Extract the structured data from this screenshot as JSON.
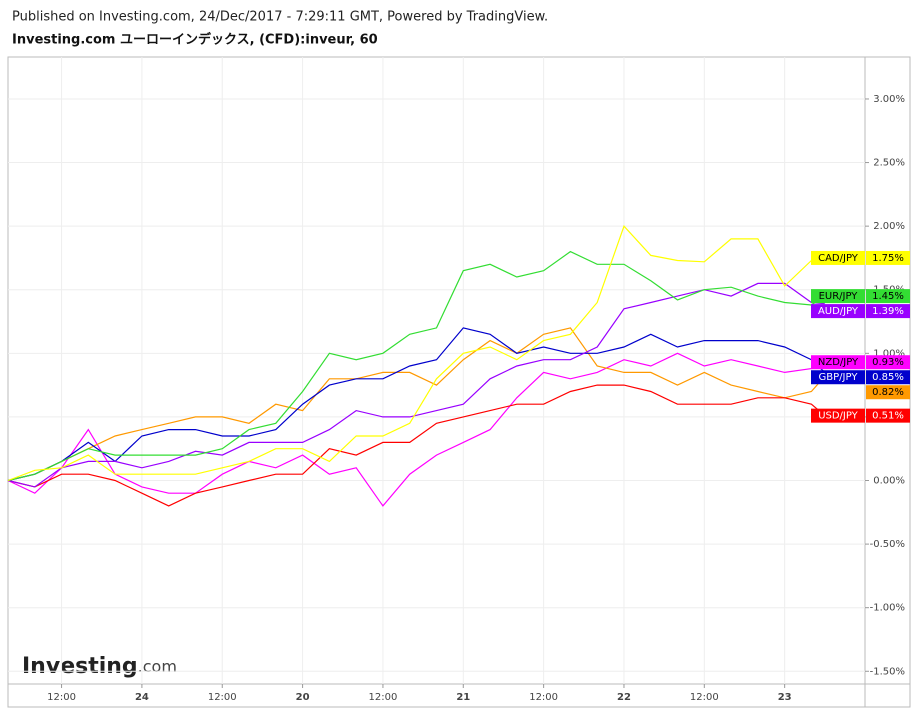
{
  "published": "Published on Investing.com, 24/Dec/2017 - 7:29:11 GMT, Powered by TradingView.",
  "chart_data": {
    "type": "line",
    "title": "Investing.com ユーローインデックス, (CFD):inveur, 60",
    "logo_main": "Investing",
    "logo_suffix": ".com",
    "x": [
      4,
      8,
      12,
      16,
      20,
      24,
      28,
      32,
      36,
      40,
      44,
      48,
      52,
      56,
      60,
      64,
      68,
      72,
      76,
      80,
      84,
      88,
      92,
      96,
      100,
      104,
      108,
      112,
      116,
      120,
      124,
      126
    ],
    "xlim": [
      4,
      132
    ],
    "xticks": [
      {
        "value": 12,
        "label": "12:00"
      },
      24,
      {
        "value": 36,
        "label": "12:00"
      },
      {
        "value": 48,
        "label": "20"
      },
      {
        "value": 60,
        "label": "12:00"
      },
      {
        "value": 72,
        "label": "21"
      },
      {
        "value": 84,
        "label": "12:00"
      },
      {
        "value": 96,
        "label": "22"
      },
      {
        "value": 108,
        "label": "12:00"
      },
      {
        "value": 120,
        "label": "23"
      }
    ],
    "ylim": [
      -1.6,
      3.33
    ],
    "yticks": [
      {
        "value": 3,
        "label": "3.00%"
      },
      {
        "value": 2.5,
        "label": "2.50%"
      },
      {
        "value": 2,
        "label": "2.00%"
      },
      {
        "value": 1.5,
        "label": "1.50%"
      },
      {
        "value": 1,
        "label": "1.00%"
      },
      {
        "value": 0.5,
        "label": "0.50%"
      },
      {
        "value": 0,
        "label": "0.00%"
      },
      {
        "value": -0.5,
        "label": "-0.50%"
      },
      {
        "value": -1,
        "label": "-1.00%"
      },
      {
        "value": -1.5,
        "label": "-1.50%"
      }
    ],
    "grid": true,
    "series": [
      {
        "name": "NZD/JPY",
        "color": "#ff00ff",
        "end_label": "0.93%",
        "values": [
          0,
          -0.1,
          0.1,
          0.4,
          0.05,
          -0.05,
          -0.1,
          -0.1,
          0.05,
          0.15,
          0.1,
          0.2,
          0.05,
          0.1,
          -0.2,
          0.05,
          0.2,
          0.3,
          0.4,
          0.65,
          0.85,
          0.8,
          0.85,
          0.95,
          0.9,
          1.0,
          0.9,
          0.95,
          0.9,
          0.85,
          0.88,
          0.93
        ]
      },
      {
        "color": "#ff9900",
        "end_label": "0.82%",
        "values": [
          0,
          0.05,
          0.15,
          0.25,
          0.35,
          0.4,
          0.45,
          0.5,
          0.5,
          0.45,
          0.6,
          0.55,
          0.8,
          0.8,
          0.85,
          0.85,
          0.75,
          0.95,
          1.1,
          1.0,
          1.15,
          1.2,
          0.9,
          0.85,
          0.85,
          0.75,
          0.85,
          0.75,
          0.7,
          0.65,
          0.7,
          0.82
        ]
      },
      {
        "name": "USD/JPY",
        "color": "#ff0000",
        "end_label": "0.51%",
        "values": [
          0,
          -0.05,
          0.05,
          0.05,
          0,
          -0.1,
          -0.2,
          -0.1,
          -0.05,
          0,
          0.05,
          0.05,
          0.25,
          0.2,
          0.3,
          0.3,
          0.45,
          0.5,
          0.55,
          0.6,
          0.6,
          0.7,
          0.75,
          0.75,
          0.7,
          0.6,
          0.6,
          0.6,
          0.65,
          0.65,
          0.6,
          0.51
        ]
      },
      {
        "name": "GBP/JPY",
        "color": "#0000cc",
        "end_label": "0.85%",
        "values": [
          0,
          0.05,
          0.15,
          0.3,
          0.15,
          0.35,
          0.4,
          0.4,
          0.35,
          0.35,
          0.4,
          0.6,
          0.75,
          0.8,
          0.8,
          0.9,
          0.95,
          1.2,
          1.15,
          1.0,
          1.05,
          1.0,
          1.0,
          1.05,
          1.15,
          1.05,
          1.1,
          1.1,
          1.1,
          1.05,
          0.95,
          0.85
        ]
      },
      {
        "name": "AUD/JPY",
        "color": "#9900ff",
        "end_label": "1.39%",
        "values": [
          0,
          -0.05,
          0.1,
          0.15,
          0.15,
          0.1,
          0.15,
          0.23,
          0.2,
          0.3,
          0.3,
          0.3,
          0.4,
          0.55,
          0.5,
          0.5,
          0.55,
          0.6,
          0.8,
          0.9,
          0.95,
          0.95,
          1.05,
          1.35,
          1.4,
          1.45,
          1.5,
          1.45,
          1.55,
          1.55,
          1.4,
          1.39
        ]
      },
      {
        "name": "EUR/JPY",
        "color": "#33dd33",
        "end_label": "1.45%",
        "values": [
          0,
          0.05,
          0.15,
          0.25,
          0.2,
          0.2,
          0.2,
          0.2,
          0.25,
          0.4,
          0.45,
          0.7,
          1.0,
          0.95,
          1.0,
          1.15,
          1.2,
          1.65,
          1.7,
          1.6,
          1.65,
          1.8,
          1.7,
          1.7,
          1.57,
          1.42,
          1.5,
          1.52,
          1.45,
          1.4,
          1.38,
          1.45
        ]
      },
      {
        "name": "CAD/JPY",
        "color": "#ffff00",
        "end_label": "1.75%",
        "values": [
          0,
          0.08,
          0.1,
          0.2,
          0.05,
          0.05,
          0.05,
          0.05,
          0.1,
          0.15,
          0.25,
          0.25,
          0.15,
          0.35,
          0.35,
          0.45,
          0.8,
          1.0,
          1.05,
          0.95,
          1.1,
          1.15,
          1.4,
          2.0,
          1.77,
          1.73,
          1.72,
          1.9,
          1.9,
          1.53,
          1.73,
          1.75
        ]
      }
    ]
  }
}
